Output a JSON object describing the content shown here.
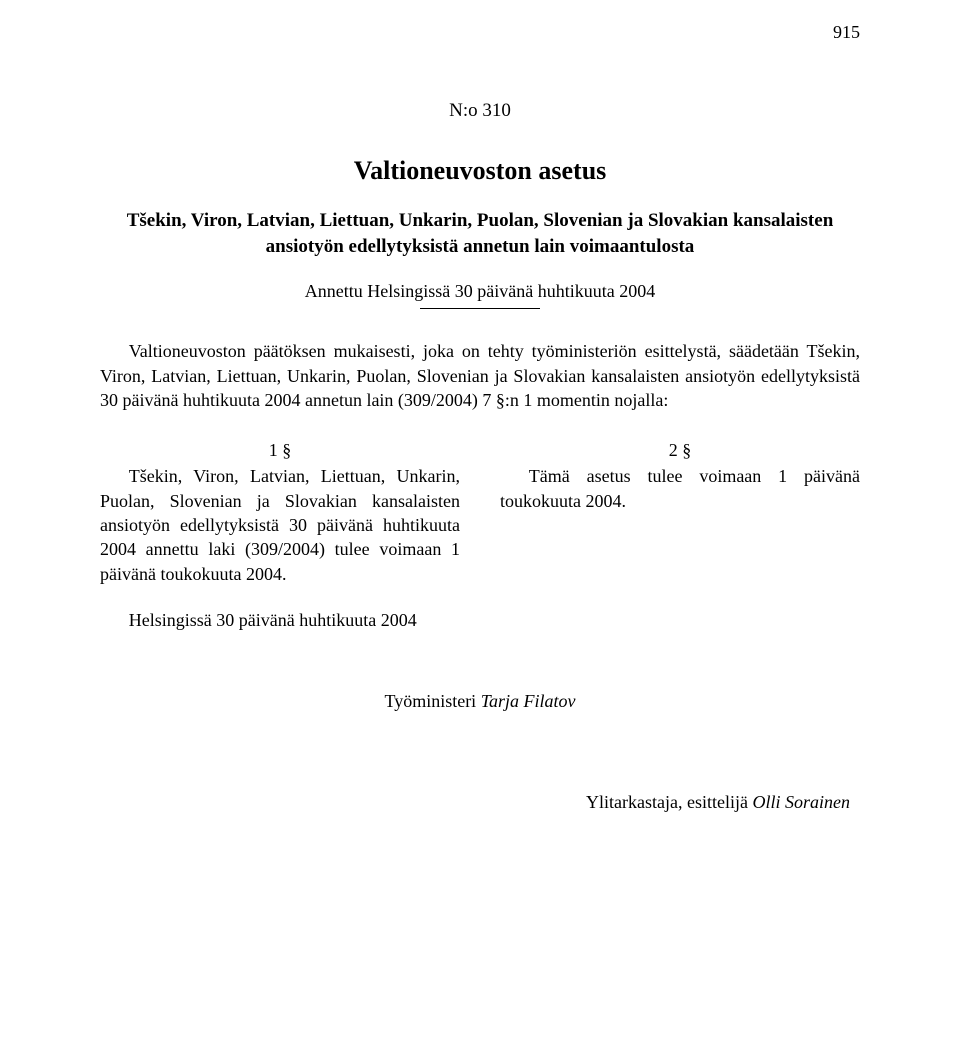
{
  "page_number": "915",
  "doc_number": "N:o 310",
  "doc_type": "Valtioneuvoston asetus",
  "doc_title": "Tšekin, Viron, Latvian, Liettuan, Unkarin, Puolan, Slovenian ja Slovakian kansalaisten ansiotyön edellytyksistä annetun lain voimaantulosta",
  "given_at": "Annettu Helsingissä 30 päivänä huhtikuuta 2004",
  "preamble": "Valtioneuvoston päätöksen mukaisesti, joka on tehty työministeriön esittelystä, säädetään Tšekin, Viron, Latvian, Liettuan, Unkarin, Puolan, Slovenian ja Slovakian kansalaisten ansiotyön edellytyksistä 30 päivänä huhtikuuta 2004 annetun lain (309/2004) 7 §:n 1 momentin nojalla:",
  "sections": {
    "s1": {
      "num": "1 §",
      "body": "Tšekin, Viron, Latvian, Liettuan, Unkarin, Puolan, Slovenian ja Slovakian kansalaisten ansiotyön edellytyksistä 30 päivänä huhtikuuta 2004 annettu laki (309/2004) tulee voimaan 1 päivänä toukokuuta 2004."
    },
    "s2": {
      "num": "2 §",
      "body": "Tämä asetus tulee voimaan 1 päivänä toukokuuta 2004."
    }
  },
  "closing_place": "Helsingissä 30 päivänä huhtikuuta 2004",
  "signature_minister_title": "Työministeri ",
  "signature_minister_name": "Tarja Filatov",
  "signature_presenter_title": "Ylitarkastaja, esittelijä ",
  "signature_presenter_name": "Olli Sorainen"
}
